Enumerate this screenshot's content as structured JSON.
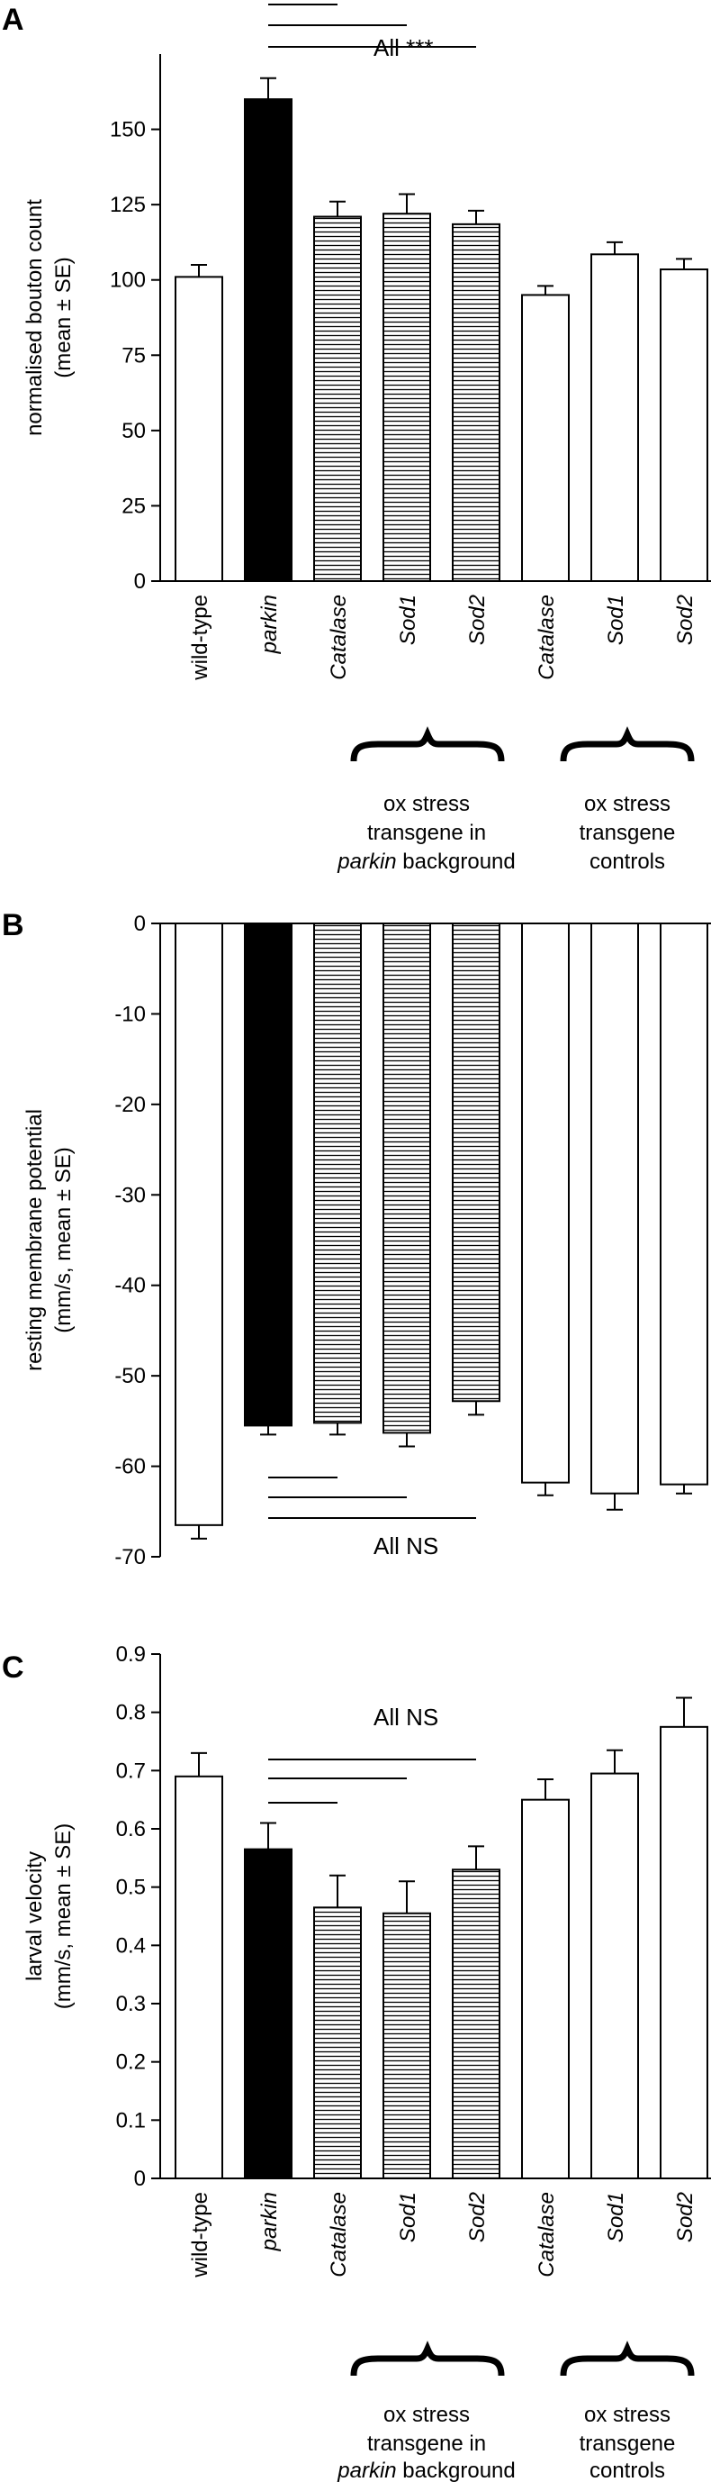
{
  "colors": {
    "parkin_fill": "#000000",
    "control_fill": "#ffffff",
    "hatch_line": "#000000",
    "stroke": "#000000"
  },
  "categories": [
    {
      "label": "wild-type",
      "italic": false
    },
    {
      "label": "parkin",
      "italic": true
    },
    {
      "label": "Catalase",
      "italic": true
    },
    {
      "label": "Sod1",
      "italic": true
    },
    {
      "label": "Sod2",
      "italic": true
    },
    {
      "label": "Catalase",
      "italic": true
    },
    {
      "label": "Sod1",
      "italic": true
    },
    {
      "label": "Sod2",
      "italic": true
    }
  ],
  "groups": {
    "left": {
      "line1": "ox stress",
      "line2": "transgene in",
      "line3_italic": "parkin",
      "line3_rest": " background"
    },
    "right": {
      "line1": "ox stress",
      "line2": "transgene",
      "line3": "controls"
    }
  },
  "chart_data": [
    {
      "panel": "A",
      "type": "bar",
      "ylabel_line1": "normalised bouton count",
      "ylabel_line2": "(mean ± SE)",
      "ylim": [
        0,
        175
      ],
      "yticks": [
        0,
        25,
        50,
        75,
        100,
        125,
        150
      ],
      "fills": [
        "white",
        "black",
        "hatch",
        "hatch",
        "hatch",
        "white",
        "white",
        "white"
      ],
      "values": [
        101,
        160,
        121,
        122,
        118.5,
        95,
        108.5,
        103.5
      ],
      "errors": [
        4,
        7,
        5,
        6.5,
        4.5,
        3,
        4,
        3.5
      ],
      "significance": {
        "label": "All ***",
        "from": 1,
        "to": [
          2,
          3,
          4
        ]
      }
    },
    {
      "panel": "B",
      "type": "bar",
      "ylabel_line1": "resting membrane potential",
      "ylabel_line2": "(mm/s, mean ± SE)",
      "ylim": [
        -70,
        0
      ],
      "yticks": [
        0,
        -10,
        -20,
        -30,
        -40,
        -50,
        -60,
        -70
      ],
      "fills": [
        "white",
        "black",
        "hatch",
        "hatch",
        "hatch",
        "white",
        "white",
        "white"
      ],
      "values": [
        -66.5,
        -55.5,
        -55.2,
        -56.3,
        -52.8,
        -61.8,
        -63.0,
        -62.0
      ],
      "errors": [
        1.5,
        1.0,
        1.3,
        1.5,
        1.5,
        1.4,
        1.8,
        1.0
      ],
      "significance": {
        "label": "All NS",
        "from": 1,
        "to": [
          2,
          3,
          4
        ]
      }
    },
    {
      "panel": "C",
      "type": "bar",
      "ylabel_line1": "larval velocity",
      "ylabel_line2": "(mm/s, mean ± SE)",
      "ylim": [
        0,
        0.9
      ],
      "yticks": [
        0,
        0.1,
        0.2,
        0.3,
        0.4,
        0.5,
        0.6,
        0.7,
        0.8,
        0.9
      ],
      "fills": [
        "white",
        "black",
        "hatch",
        "hatch",
        "hatch",
        "white",
        "white",
        "white"
      ],
      "values": [
        0.69,
        0.565,
        0.465,
        0.455,
        0.53,
        0.65,
        0.695,
        0.775
      ],
      "errors": [
        0.04,
        0.045,
        0.055,
        0.055,
        0.04,
        0.035,
        0.04,
        0.05
      ],
      "significance": {
        "label": "All NS",
        "from": 1,
        "to": [
          2,
          3,
          4
        ]
      }
    }
  ]
}
